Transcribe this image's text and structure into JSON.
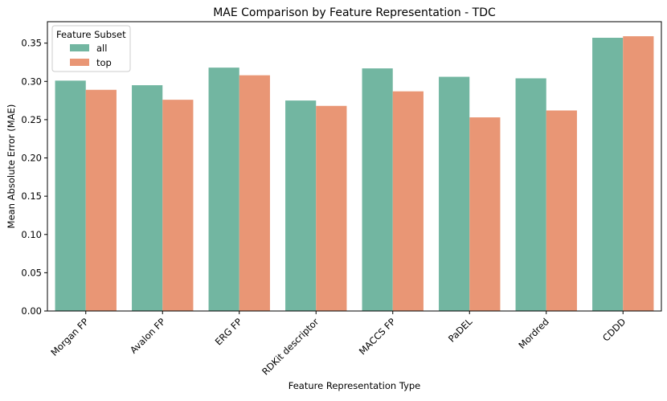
{
  "chart_data": {
    "type": "bar",
    "title": "MAE Comparison by Feature Representation - TDC",
    "xlabel": "Feature Representation Type",
    "ylabel": "Mean Absolute Error (MAE)",
    "ylim": [
      0,
      0.378
    ],
    "yticks": [
      "0.00",
      "0.05",
      "0.10",
      "0.15",
      "0.20",
      "0.25",
      "0.30",
      "0.35"
    ],
    "categories": [
      "Morgan FP",
      "Avalon FP",
      "ERG FP",
      "RDKit descriptor",
      "MACCS FP",
      "PaDEL",
      "Mordred",
      "CDDD"
    ],
    "series": [
      {
        "name": "all",
        "color": "#72b6a1",
        "values": [
          0.301,
          0.295,
          0.318,
          0.275,
          0.317,
          0.306,
          0.304,
          0.357
        ]
      },
      {
        "name": "top",
        "color": "#e99675",
        "values": [
          0.289,
          0.276,
          0.308,
          0.268,
          0.287,
          0.253,
          0.262,
          0.359
        ]
      }
    ],
    "legend": {
      "title": "Feature Subset",
      "placement": "top-left"
    },
    "grid": false
  }
}
